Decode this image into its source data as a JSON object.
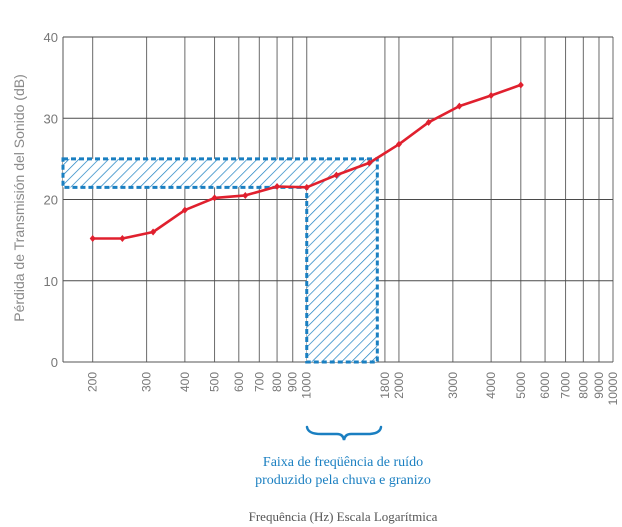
{
  "chart_data": {
    "type": "line",
    "xscale": "log",
    "xlabel": "Frequência (Hz) Escala Logarítmica",
    "ylabel": "Pérdida de Transmisión del Sonido (dB)",
    "ylim": [
      0,
      40
    ],
    "yticks": [
      0,
      10,
      20,
      30,
      40
    ],
    "xlim": [
      160,
      10000
    ],
    "xticks": [
      200,
      300,
      400,
      500,
      600,
      700,
      800,
      900,
      1000,
      1800,
      2000,
      3000,
      4000,
      5000,
      6000,
      7000,
      8000,
      9000,
      10000
    ],
    "grid": true,
    "series": [
      {
        "color": "#e0202e",
        "x": [
          200,
          250,
          315,
          400,
          500,
          630,
          800,
          1000,
          1250,
          1600,
          2000,
          2500,
          3150,
          4000,
          5000
        ],
        "y": [
          15.2,
          15.2,
          16.0,
          18.7,
          20.2,
          20.5,
          21.6,
          21.5,
          23.0,
          24.5,
          26.8,
          29.5,
          31.5,
          32.8,
          34.1
        ]
      }
    ],
    "highlight": {
      "color": "#1a7fc1",
      "x_range": [
        1000,
        1700
      ],
      "y_range": [
        21.5,
        25
      ]
    },
    "annotation": {
      "text_line1": "Faixa de freqüência de ruído",
      "text_line2": "produzido pela chuva e granizo"
    }
  }
}
